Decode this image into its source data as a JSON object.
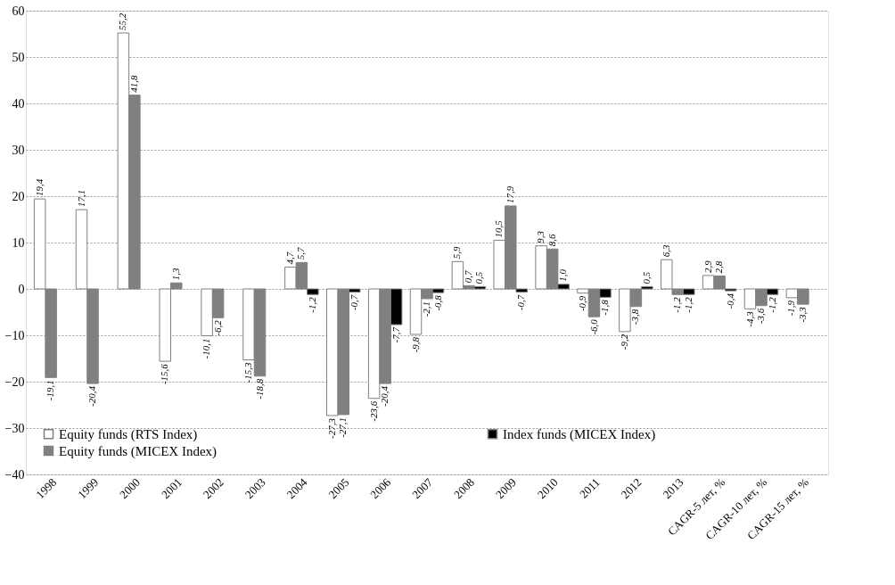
{
  "chart_data": {
    "type": "bar",
    "categories": [
      "1998",
      "1999",
      "2000",
      "2001",
      "2002",
      "2003",
      "2004",
      "2005",
      "2006",
      "2007",
      "2008",
      "2009",
      "2010",
      "2011",
      "2012",
      "2013",
      "CAGR-5 лет, %",
      "CAGR-10 лет, %",
      "CAGR-15 лет, %"
    ],
    "series": [
      {
        "name": "Equity funds (RTS Index)",
        "color": "#ffffff",
        "values": [
          19.4,
          17.1,
          55.2,
          -15.6,
          -10.1,
          -15.3,
          4.7,
          -27.3,
          -23.6,
          -9.8,
          5.9,
          10.5,
          9.3,
          -0.9,
          -9.2,
          6.3,
          2.9,
          -4.3,
          -1.9
        ],
        "value_labels": [
          "19,4",
          "17,1",
          "55,2",
          "-15,6",
          "-10,1",
          "-15,3",
          "4,7",
          "-27,3",
          "-23,6",
          "-9,8",
          "5,9",
          "10,5",
          "9,3",
          "-0,9",
          "-9,2",
          "6,3",
          "2,9",
          "-4,3",
          "-1,9"
        ]
      },
      {
        "name": "Equity funds (MICEX Index)",
        "color": "#808080",
        "values": [
          -19.1,
          -20.4,
          41.8,
          1.3,
          -6.2,
          -18.8,
          5.7,
          -27.1,
          -20.4,
          -2.1,
          0.7,
          17.9,
          8.6,
          -6.0,
          -3.8,
          -1.2,
          2.8,
          -3.6,
          -3.3
        ],
        "value_labels": [
          "-19,1",
          "-20,4",
          "41,8",
          "1,3",
          "-6,2",
          "-18,8",
          "5,7",
          "-27,1",
          "-20,4",
          "-2,1",
          "0,7",
          "17,9",
          "8,6",
          "-6,0",
          "-3,8",
          "-1,2",
          "2,8",
          "-3,6",
          "-3,3"
        ]
      },
      {
        "name": "Index funds (MICEX Index)",
        "color": "#000000",
        "values": [
          null,
          null,
          null,
          null,
          null,
          null,
          -1.2,
          -0.7,
          -7.7,
          -0.8,
          0.5,
          -0.7,
          1.0,
          -1.8,
          0.5,
          -1.2,
          -0.4,
          -1.2,
          null
        ],
        "value_labels": [
          null,
          null,
          null,
          null,
          null,
          null,
          "-1,2",
          "-0,7",
          "-7,7",
          "-0,8",
          "0,5",
          "-0,7",
          "1,0",
          "-1,8",
          "0,5",
          "-1,2",
          "-0,4",
          "-1,2",
          null
        ]
      }
    ],
    "ylim": [
      -40,
      60
    ],
    "yticks": [
      -40,
      -30,
      -20,
      -10,
      0,
      10,
      20,
      30,
      40,
      50,
      60
    ],
    "grid": "y",
    "legend": "bottom left"
  }
}
